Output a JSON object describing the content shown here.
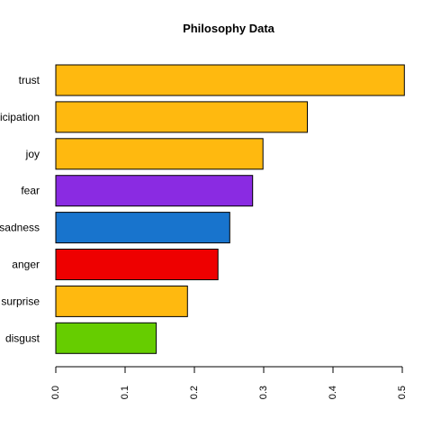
{
  "chart_data": {
    "type": "bar",
    "orientation": "horizontal",
    "title": "Philosophy Data",
    "xlabel": "",
    "ylabel": "",
    "categories": [
      "trust",
      "anticipation",
      "joy",
      "fear",
      "sadness",
      "anger",
      "surprise",
      "disgust"
    ],
    "values": [
      0.503,
      0.363,
      0.299,
      0.284,
      0.251,
      0.234,
      0.19,
      0.145
    ],
    "colors": [
      "#FFB90F",
      "#FFB90F",
      "#FFB90F",
      "#8A2BE2",
      "#1874CD",
      "#EE0000",
      "#FFB90F",
      "#66CD00"
    ],
    "xlim": [
      0,
      0.5
    ],
    "xticks": [
      "0.0",
      "0.1",
      "0.2",
      "0.3",
      "0.4",
      "0.5"
    ],
    "grid": false,
    "legend": "none"
  }
}
